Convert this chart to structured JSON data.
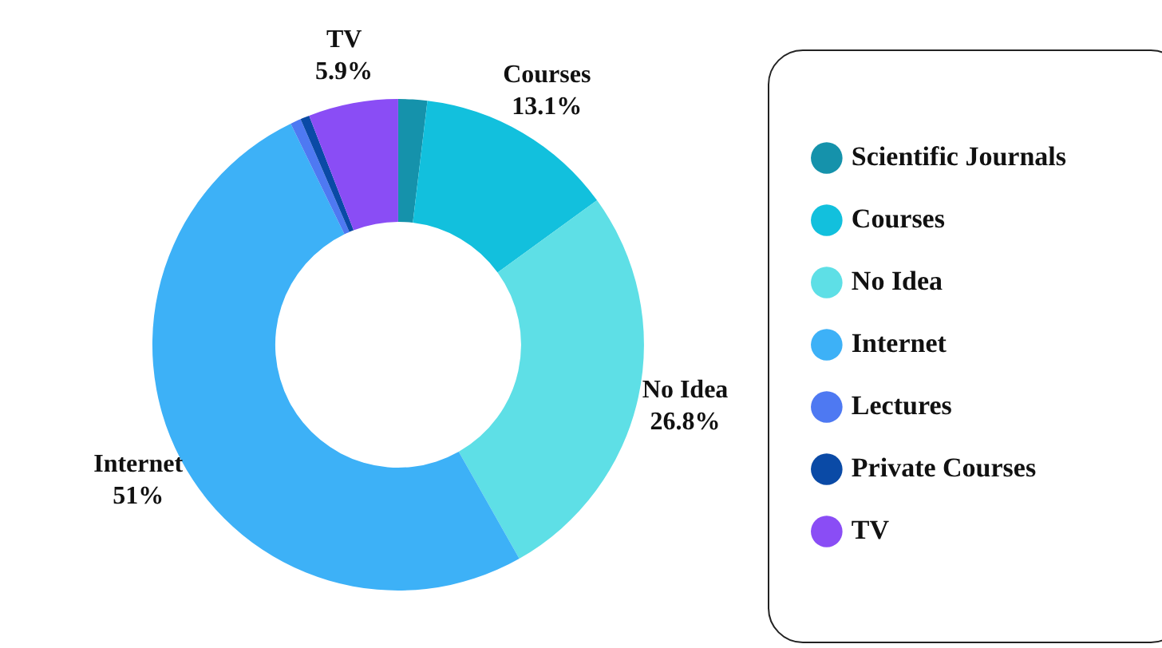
{
  "chart_data": {
    "type": "donut",
    "categories": [
      "Scientific Journals",
      "Courses",
      "No Idea",
      "Internet",
      "Lectures",
      "Private Courses",
      "TV"
    ],
    "values": [
      1.9,
      13.1,
      26.8,
      51,
      0.7,
      0.6,
      5.9
    ],
    "colors": [
      "#1592ab",
      "#12c0dd",
      "#5edfe6",
      "#3db1f7",
      "#4e79f2",
      "#0a4aa6",
      "#8a4df5"
    ],
    "value_labels": [
      null,
      "13.1%",
      "26.8%",
      "51%",
      null,
      null,
      "5.9%"
    ],
    "legend": "right"
  }
}
